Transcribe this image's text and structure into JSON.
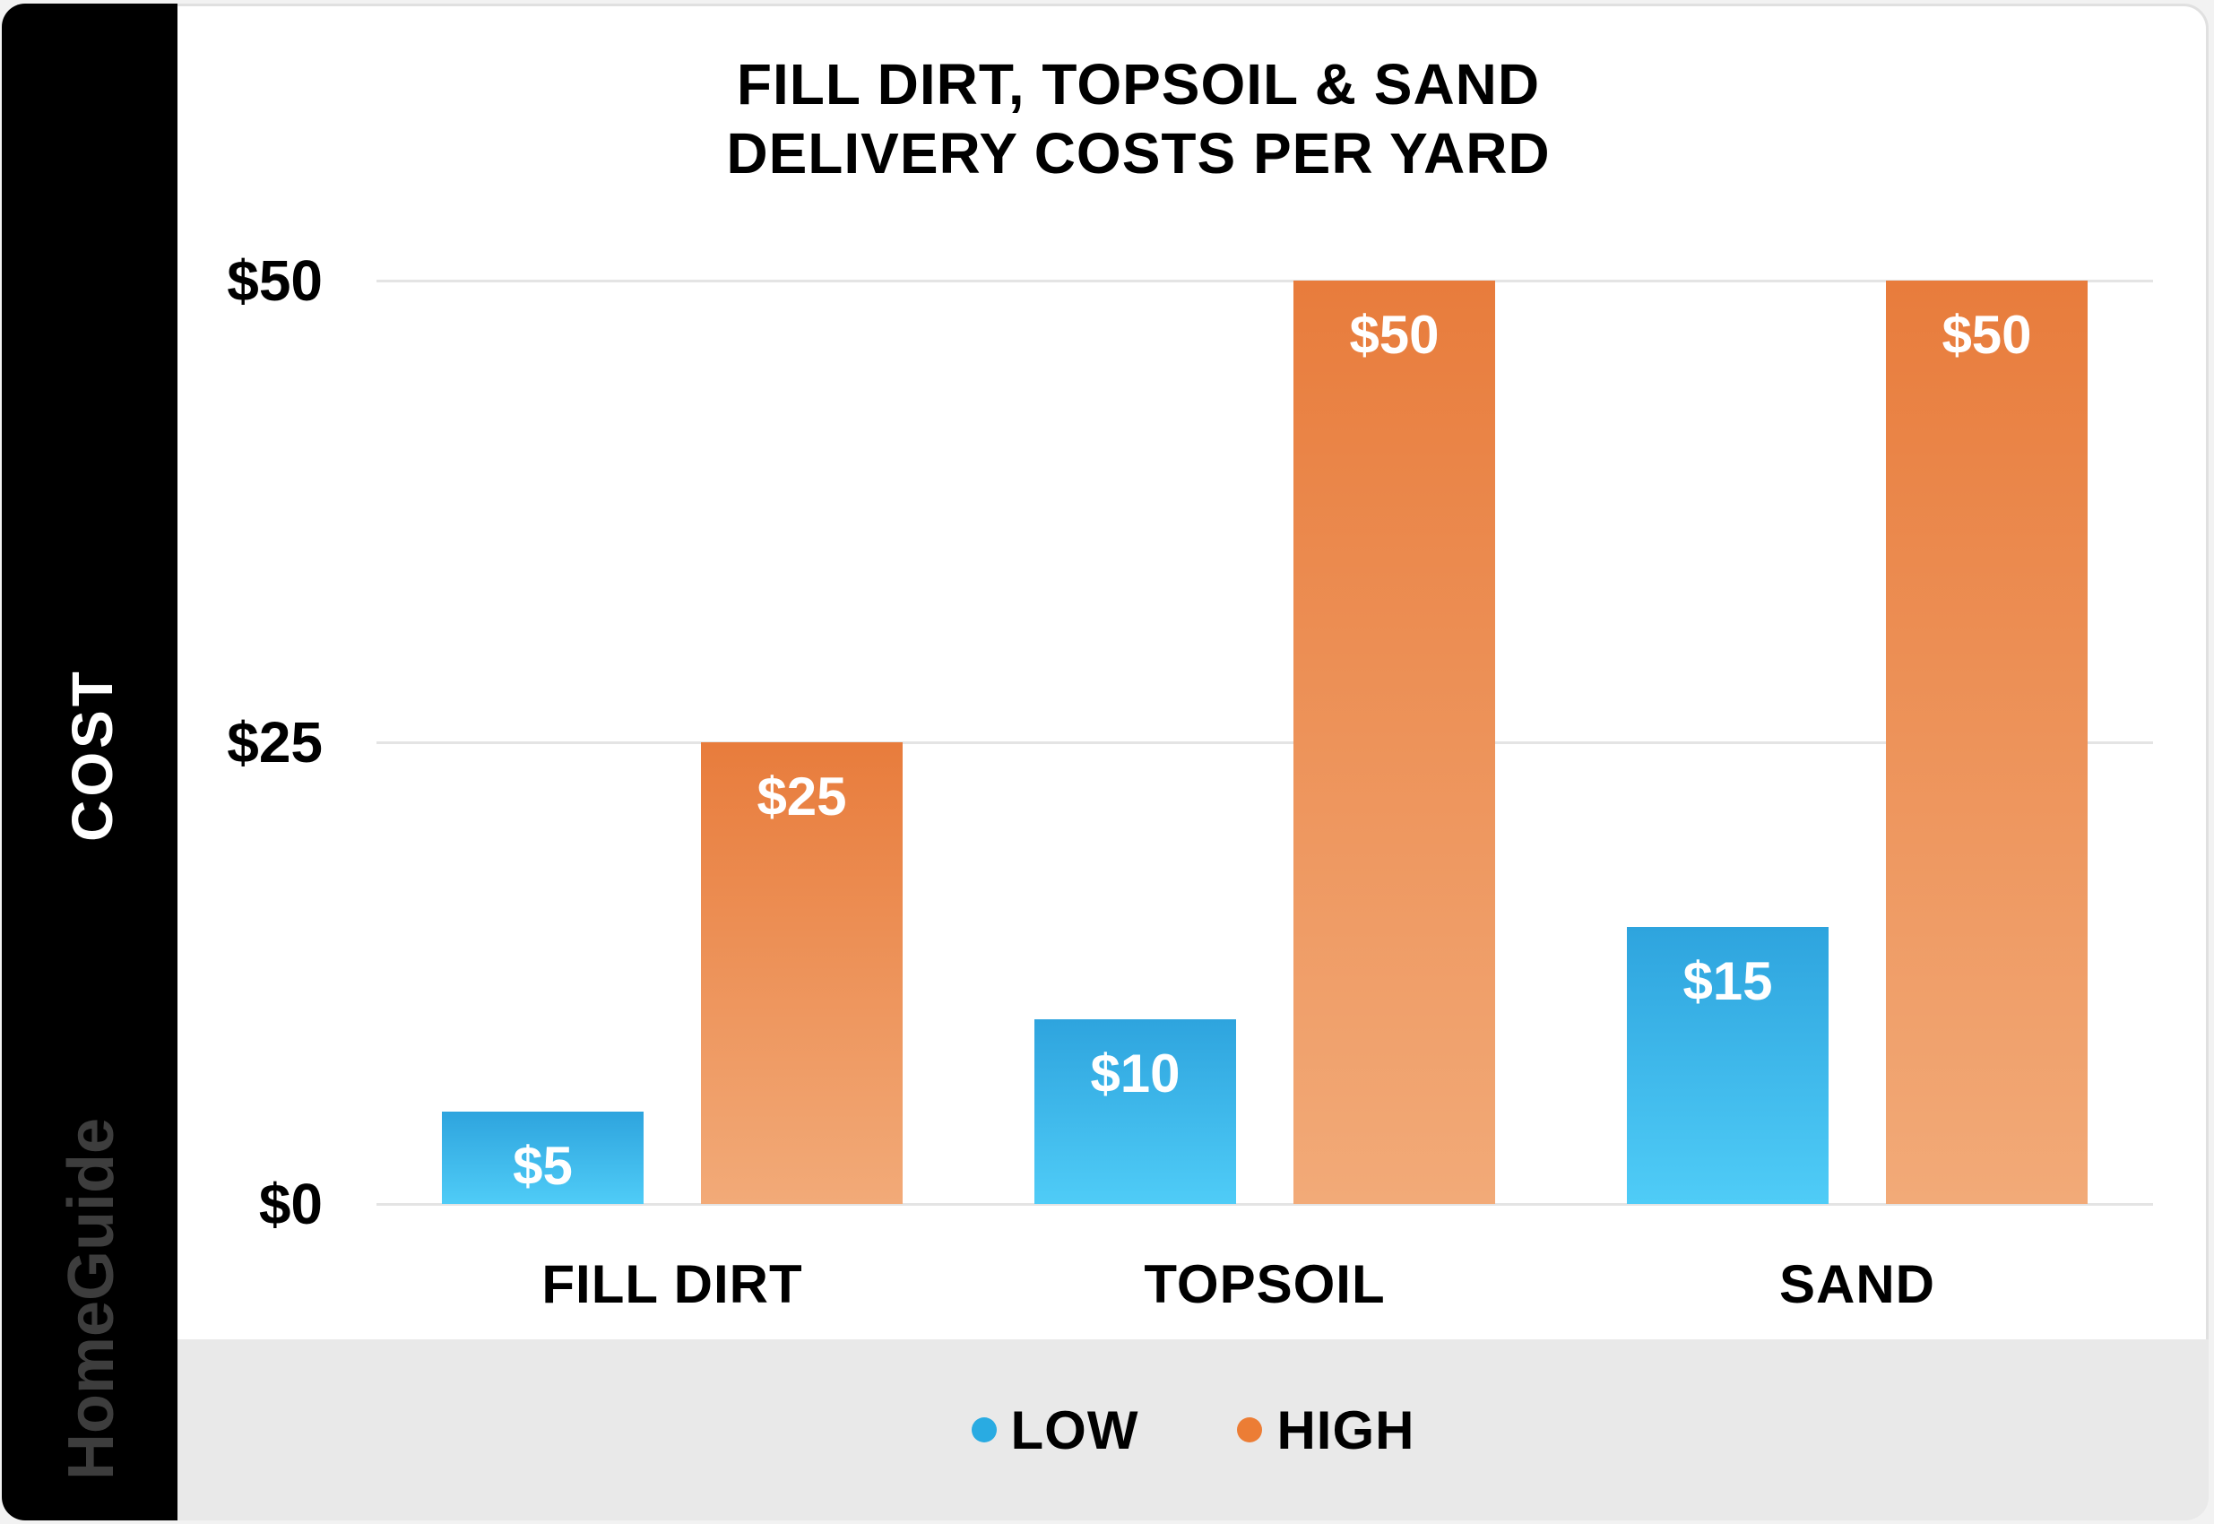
{
  "sidebar": {
    "axis_label": "COST",
    "brand": "HomeGuide"
  },
  "chart_data": {
    "type": "bar",
    "title_line1": "FILL DIRT, TOPSOIL & SAND",
    "title_line2": "DELIVERY COSTS PER YARD",
    "ylabel": "COST",
    "xlabel": "",
    "ylim": [
      0,
      50
    ],
    "grid": true,
    "legend_position": "bottom",
    "categories": [
      "FILL DIRT",
      "TOPSOIL",
      "SAND"
    ],
    "series": [
      {
        "name": "LOW",
        "values": [
          5,
          10,
          15
        ]
      },
      {
        "name": "HIGH",
        "values": [
          25,
          50,
          50
        ]
      }
    ],
    "value_labels": [
      [
        "$5",
        "$10",
        "$15"
      ],
      [
        "$25",
        "$50",
        "$50"
      ]
    ],
    "yticks": [
      "$0",
      "$25",
      "$50"
    ],
    "ytick_values": [
      0,
      25,
      50
    ],
    "legend": [
      {
        "label": "LOW",
        "color": "#29abe2"
      },
      {
        "label": "HIGH",
        "color": "#ec7d35"
      }
    ],
    "colors": {
      "low_top": "#2ea4de",
      "low_bottom": "#4fccf7",
      "high_top": "#e87c3c",
      "high_bottom": "#f2aa78"
    }
  }
}
